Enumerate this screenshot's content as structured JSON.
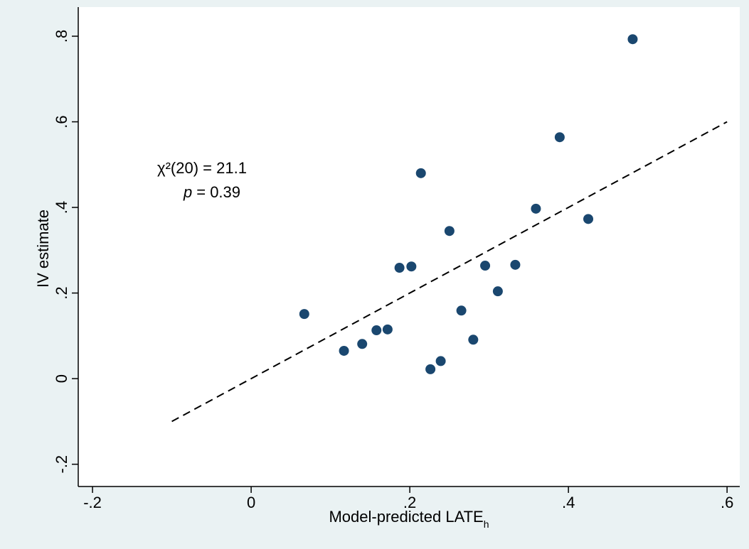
{
  "chart_data": {
    "type": "scatter",
    "x_label": {
      "text": "Model-predicted LATE",
      "subscript": "h"
    },
    "y_label": "IV estimate",
    "annotations": [
      {
        "text": "χ²(20) = 21.1"
      },
      {
        "symbol": "p",
        "text": "= 0.39"
      }
    ],
    "x": [
      0.067,
      0.117,
      0.14,
      0.158,
      0.172,
      0.187,
      0.202,
      0.214,
      0.226,
      0.239,
      0.25,
      0.265,
      0.28,
      0.295,
      0.311,
      0.333,
      0.359,
      0.389,
      0.425,
      0.481
    ],
    "y": [
      0.151,
      0.065,
      0.081,
      0.113,
      0.115,
      0.259,
      0.262,
      0.48,
      0.022,
      0.041,
      0.345,
      0.159,
      0.091,
      0.264,
      0.204,
      0.266,
      0.397,
      0.564,
      0.373,
      0.793
    ],
    "color": "#1a476f",
    "reference_line": {
      "x": [
        -0.1,
        0.6
      ],
      "y": [
        -0.1,
        0.6
      ]
    },
    "xlim": [
      -0.218,
      0.616
    ],
    "ylim": [
      -0.252,
      0.868
    ],
    "xticks": [
      {
        "value": -0.2,
        "label": "-.2"
      },
      0,
      {
        "value": 0.2,
        "label": ".2"
      },
      {
        "value": 0.4,
        "label": ".4"
      },
      {
        "value": 0.6,
        "label": ".6"
      }
    ],
    "yticks": [
      {
        "value": -0.2,
        "label": "-.2"
      },
      0,
      {
        "value": 0.2,
        "label": ".2"
      },
      {
        "value": 0.4,
        "label": ".4"
      },
      {
        "value": 0.6,
        "label": ".6"
      },
      {
        "value": 0.8,
        "label": ".8"
      }
    ]
  }
}
